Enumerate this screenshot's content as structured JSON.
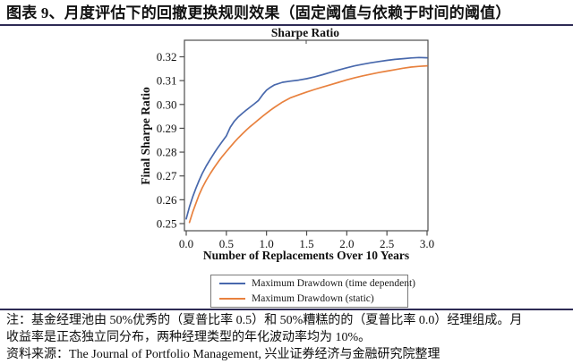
{
  "header": {
    "title": "图表 9、月度评估下的回撤更换规则效果（固定阈值与依赖于时间的阈值）"
  },
  "colors": {
    "rule": "#2e2b55",
    "axis": "#4d4d4d",
    "text": "#111111",
    "background": "#ffffff",
    "series_blue": "#4868ac",
    "series_orange": "#e8813e"
  },
  "chart_data": {
    "type": "line",
    "title": "Sharpe Ratio",
    "xlabel": "Number of Replacements Over 10 Years",
    "ylabel": "Final Sharpe Ratio",
    "xlim": [
      0.0,
      3.0
    ],
    "ylim": [
      0.25,
      0.32
    ],
    "xticks": [
      0.0,
      0.5,
      1.0,
      1.5,
      2.0,
      2.5,
      3.0
    ],
    "yticks": [
      0.25,
      0.26,
      0.27,
      0.28,
      0.29,
      0.3,
      0.31,
      0.32
    ],
    "grid": false,
    "legend_position": "below-center-boxed",
    "series": [
      {
        "name": "Maximum Drawdown (time dependent)",
        "color": "#4868ac",
        "x": [
          0.0,
          0.04,
          0.08,
          0.12,
          0.16,
          0.2,
          0.25,
          0.3,
          0.35,
          0.4,
          0.45,
          0.5,
          0.55,
          0.6,
          0.65,
          0.7,
          0.75,
          0.8,
          0.85,
          0.9,
          0.95,
          1.0,
          1.05,
          1.1,
          1.2,
          1.3,
          1.4,
          1.5,
          1.6,
          1.7,
          1.8,
          1.9,
          2.0,
          2.1,
          2.2,
          2.3,
          2.4,
          2.5,
          2.6,
          2.7,
          2.8,
          2.9,
          3.0
        ],
        "y": [
          0.252,
          0.257,
          0.2612,
          0.2648,
          0.268,
          0.271,
          0.2742,
          0.277,
          0.2797,
          0.2822,
          0.2845,
          0.2868,
          0.2905,
          0.293,
          0.2948,
          0.2963,
          0.2977,
          0.299,
          0.3003,
          0.3017,
          0.304,
          0.306,
          0.3072,
          0.3082,
          0.3093,
          0.3098,
          0.3102,
          0.3108,
          0.3116,
          0.3125,
          0.3135,
          0.3145,
          0.3154,
          0.3162,
          0.3169,
          0.3175,
          0.318,
          0.3185,
          0.3189,
          0.3192,
          0.3195,
          0.3197,
          0.3196
        ]
      },
      {
        "name": "Maximum Drawdown (static)",
        "color": "#e8813e",
        "x": [
          0.04,
          0.08,
          0.12,
          0.16,
          0.2,
          0.25,
          0.3,
          0.35,
          0.4,
          0.45,
          0.5,
          0.55,
          0.6,
          0.65,
          0.7,
          0.75,
          0.8,
          0.85,
          0.9,
          0.95,
          1.0,
          1.05,
          1.1,
          1.2,
          1.3,
          1.4,
          1.5,
          1.6,
          1.7,
          1.8,
          1.9,
          2.0,
          2.1,
          2.2,
          2.3,
          2.4,
          2.5,
          2.6,
          2.7,
          2.8,
          2.9,
          3.0
        ],
        "y": [
          0.2505,
          0.2548,
          0.2585,
          0.262,
          0.265,
          0.2682,
          0.271,
          0.2736,
          0.276,
          0.2782,
          0.2802,
          0.2822,
          0.2842,
          0.286,
          0.2877,
          0.2893,
          0.2908,
          0.2922,
          0.2936,
          0.295,
          0.2963,
          0.2976,
          0.2988,
          0.301,
          0.3028,
          0.304,
          0.3052,
          0.3063,
          0.3073,
          0.3083,
          0.3093,
          0.3103,
          0.3112,
          0.312,
          0.3127,
          0.3134,
          0.314,
          0.3146,
          0.3152,
          0.3157,
          0.316,
          0.3162
        ]
      }
    ]
  },
  "footer": {
    "note_lines": [
      "注：基金经理池由 50%优秀的（夏普比率 0.5）和 50%糟糕的的（夏普比率 0.0）经理组成。月",
      "收益率是正态独立同分布，两种经理类型的年化波动率均为 10%。"
    ],
    "source_line": "资料来源：The Journal of Portfolio Management, 兴业证券经济与金融研究院整理"
  }
}
